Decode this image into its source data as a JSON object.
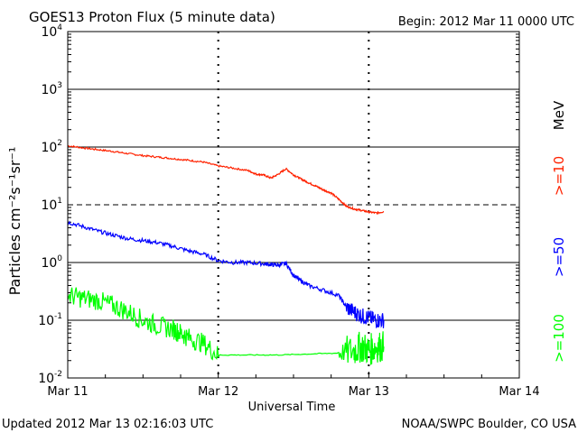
{
  "header": {
    "title": "GOES13 Proton Flux (5 minute data)",
    "begin": "Begin: 2012 Mar 11 0000 UTC"
  },
  "footer": {
    "updated": "Updated 2012 Mar 13 02:16:03 UTC",
    "credit": "NOAA/SWPC Boulder, CO USA"
  },
  "colors": {
    "ge10": "#ff2200",
    "ge50": "#0000ff",
    "ge100": "#00ff00",
    "grid": "#000000"
  },
  "chart_data": {
    "type": "line",
    "title": "GOES13 Proton Flux (5 minute data)",
    "xlabel": "Universal Time",
    "ylabel": "Particles cm⁻²s⁻¹sr⁻¹",
    "yscale": "log",
    "ylim": [
      0.01,
      10000
    ],
    "xlim": [
      0,
      3
    ],
    "x_unit": "days since 2012 Mar 11 0000 UTC",
    "x_ticks": [
      {
        "value": 0,
        "label": "Mar 11"
      },
      {
        "value": 1,
        "label": "Mar 12"
      },
      {
        "value": 2,
        "label": "Mar 13"
      },
      {
        "value": 3,
        "label": "Mar 14"
      }
    ],
    "y_ticks": [
      {
        "value": 0.01,
        "base": "10",
        "exp": "-2"
      },
      {
        "value": 0.1,
        "base": "10",
        "exp": "-1"
      },
      {
        "value": 1,
        "base": "10",
        "exp": "0"
      },
      {
        "value": 10,
        "base": "10",
        "exp": "1"
      },
      {
        "value": 100,
        "base": "10",
        "exp": "2"
      },
      {
        "value": 1000,
        "base": "10",
        "exp": "3"
      },
      {
        "value": 10000,
        "base": "10",
        "exp": "4"
      }
    ],
    "threshold": {
      "value": 10,
      "style": "dashed"
    },
    "day_markers": [
      1,
      2
    ],
    "legend_unit": "MeV",
    "series": [
      {
        "name": ">=10",
        "color": "#ff2200",
        "x": [
          0,
          0.1,
          0.2,
          0.3,
          0.4,
          0.5,
          0.6,
          0.7,
          0.8,
          0.9,
          1.0,
          1.1,
          1.2,
          1.25,
          1.3,
          1.35,
          1.4,
          1.45,
          1.5,
          1.55,
          1.6,
          1.65,
          1.7,
          1.75,
          1.8,
          1.85,
          1.9,
          1.95,
          2.0,
          2.05,
          2.1
        ],
        "values": [
          105,
          97,
          90,
          84,
          77,
          71,
          67,
          63,
          59,
          55,
          47,
          43,
          39,
          34,
          33,
          29,
          34,
          42,
          33,
          28,
          24,
          21,
          18,
          16,
          12.5,
          9.5,
          8.5,
          8.0,
          7.5,
          7.2,
          7.6
        ]
      },
      {
        "name": ">=50",
        "color": "#0000ff",
        "x": [
          0,
          0.1,
          0.2,
          0.3,
          0.4,
          0.5,
          0.6,
          0.7,
          0.8,
          0.9,
          1.0,
          1.1,
          1.2,
          1.3,
          1.35,
          1.4,
          1.45,
          1.5,
          1.55,
          1.6,
          1.7,
          1.8,
          1.85,
          1.9,
          1.95,
          2.0,
          2.05,
          2.1
        ],
        "values": [
          5.0,
          4.2,
          3.5,
          3.0,
          2.6,
          2.4,
          2.2,
          1.9,
          1.6,
          1.4,
          1.08,
          1.0,
          1.0,
          0.95,
          0.92,
          0.9,
          0.97,
          0.6,
          0.48,
          0.4,
          0.33,
          0.27,
          0.17,
          0.14,
          0.12,
          0.11,
          0.1,
          0.1
        ]
      },
      {
        "name": ">=100",
        "color": "#00ff00",
        "x": [
          0,
          0.1,
          0.2,
          0.3,
          0.4,
          0.5,
          0.6,
          0.7,
          0.75,
          0.8,
          0.9,
          1.0,
          1.2,
          1.4,
          1.6,
          1.8,
          1.9,
          1.95,
          2.0,
          2.05,
          2.1
        ],
        "values": [
          0.27,
          0.24,
          0.22,
          0.18,
          0.14,
          0.1,
          0.08,
          0.07,
          0.06,
          0.05,
          0.04,
          0.025,
          0.025,
          0.025,
          0.026,
          0.027,
          0.03,
          0.035,
          0.03,
          0.035,
          0.035
        ]
      }
    ]
  }
}
